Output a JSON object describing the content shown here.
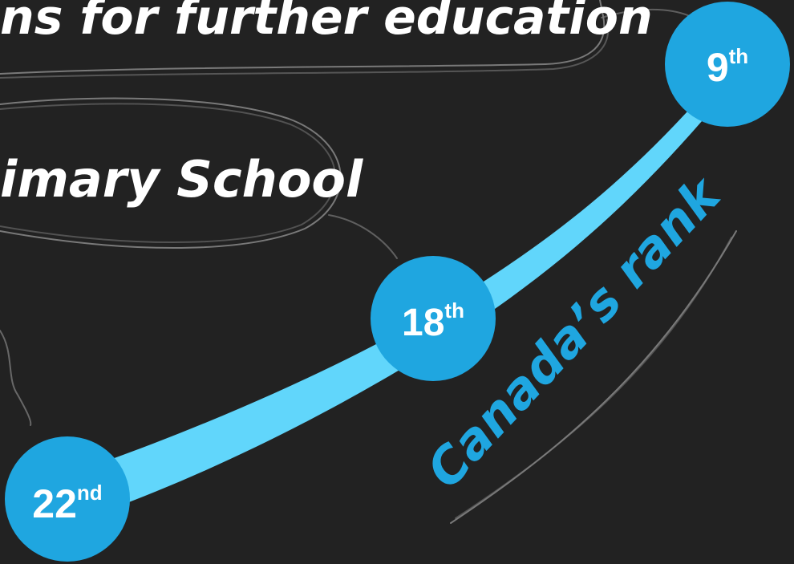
{
  "labels": {
    "further_education": "ns for further education",
    "primary_school": "imary School",
    "canada_rank": "Canada’s rank"
  },
  "ranks": [
    {
      "num": "22",
      "suffix": "nd"
    },
    {
      "num": "18",
      "suffix": "th"
    },
    {
      "num": "9",
      "suffix": "th"
    }
  ],
  "colors": {
    "background": "#222222",
    "badge": "#1fa6e0",
    "ribbon": "#61d6fb",
    "text_white": "#ffffff",
    "sketch_line": "#8a8a8a"
  }
}
